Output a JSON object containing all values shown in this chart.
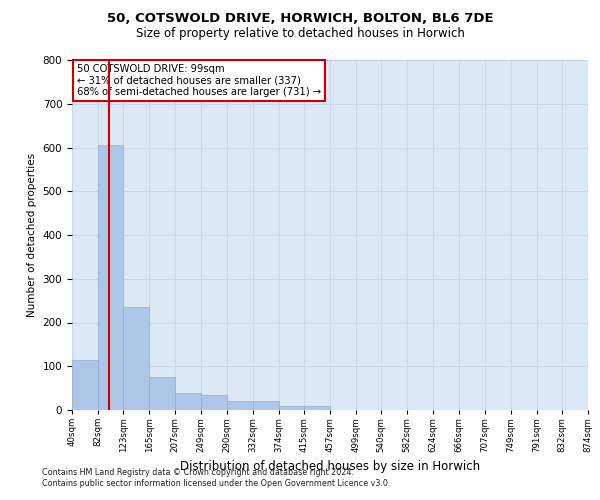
{
  "title": "50, COTSWOLD DRIVE, HORWICH, BOLTON, BL6 7DE",
  "subtitle": "Size of property relative to detached houses in Horwich",
  "xlabel": "Distribution of detached houses by size in Horwich",
  "ylabel": "Number of detached properties",
  "bins": [
    40,
    82,
    123,
    165,
    207,
    249,
    290,
    332,
    374,
    415,
    457,
    499,
    540,
    582,
    624,
    666,
    707,
    749,
    791,
    832,
    874
  ],
  "bar_heights": [
    115,
    605,
    235,
    75,
    40,
    35,
    20,
    20,
    10,
    10,
    0,
    0,
    0,
    0,
    0,
    0,
    0,
    0,
    0,
    0
  ],
  "bar_color": "#aec6e8",
  "bar_edgecolor": "#8ab0d0",
  "grid_color": "#c8d8e8",
  "bg_color": "#dce8f5",
  "property_sqm": 99,
  "property_line_color": "#cc0000",
  "ylim": [
    0,
    800
  ],
  "yticks": [
    0,
    100,
    200,
    300,
    400,
    500,
    600,
    700,
    800
  ],
  "annotation_text": "50 COTSWOLD DRIVE: 99sqm\n← 31% of detached houses are smaller (337)\n68% of semi-detached houses are larger (731) →",
  "annotation_box_color": "#ffffff",
  "annotation_box_edge": "#cc0000",
  "footer": "Contains HM Land Registry data © Crown copyright and database right 2024.\nContains public sector information licensed under the Open Government Licence v3.0."
}
